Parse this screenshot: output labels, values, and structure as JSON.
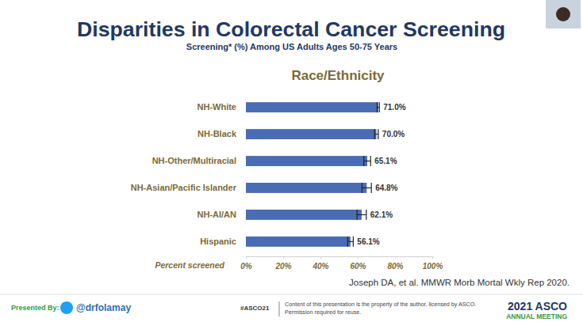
{
  "chart_data": {
    "type": "bar",
    "orientation": "horizontal",
    "title": "Disparities in Colorectal Cancer Screening",
    "subtitle": "Screening* (%) Among US Adults Ages 50-75 Years",
    "group_label": "Race/Ethnicity",
    "x_label": "Percent screened",
    "categories": [
      "NH-White",
      "NH-Black",
      "NH-Other/Multiracial",
      "NH-Asian/Pacific Islander",
      "NH-AI/AN",
      "Hispanic"
    ],
    "values": [
      71.0,
      70.0,
      65.1,
      64.8,
      62.1,
      56.1
    ],
    "value_labels": [
      "71.0%",
      "70.0%",
      "65.1%",
      "64.8%",
      "62.1%",
      "56.1%"
    ],
    "errors": [
      0.6,
      1.0,
      1.8,
      2.5,
      2.5,
      1.5
    ],
    "color": "#4a6cb3",
    "data_labels": true,
    "grid": false,
    "xlim": [
      0,
      100
    ],
    "xticks": [
      {
        "value": 0,
        "label": "0%"
      },
      {
        "value": 20,
        "label": "20%"
      },
      {
        "value": 40,
        "label": "40%"
      },
      {
        "value": 60,
        "label": "60%"
      },
      {
        "value": 80,
        "label": "80%"
      },
      {
        "value": 100,
        "label": "100%"
      }
    ]
  },
  "slide": {
    "citation": "Joseph DA, et al. MMWR Morb Mortal Wkly Rep 2020.",
    "footer": {
      "presented_by": "Presented By:",
      "handle": "@drfolamay",
      "hashtag": "#ASCO21",
      "notice": [
        "Content of this presentation is the property of the author, licensed by ASCO.",
        "Permission required for reuse."
      ],
      "logo": "2021 ASCO",
      "logo_sub": "ANNUAL MEETING"
    }
  }
}
